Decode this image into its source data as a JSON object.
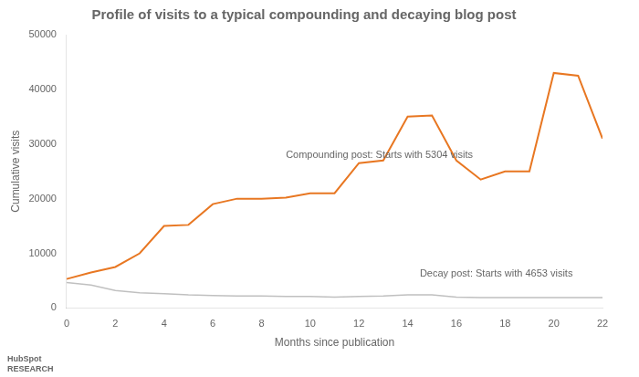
{
  "chart_data": {
    "type": "line",
    "title": "Profile of visits to a typical compounding and decaying blog post",
    "xlabel": "Months since publication",
    "ylabel": "Cumulative visits",
    "x": [
      0,
      1,
      2,
      3,
      4,
      5,
      6,
      7,
      8,
      9,
      10,
      11,
      12,
      13,
      14,
      15,
      16,
      17,
      18,
      19,
      20,
      21,
      22
    ],
    "series": [
      {
        "color": "#E87722",
        "values": [
          5304,
          6500,
          7500,
          10000,
          15000,
          15200,
          19000,
          20000,
          20000,
          20200,
          21000,
          21000,
          26500,
          27000,
          35000,
          35200,
          27000,
          23500,
          25000,
          25000,
          43000,
          42500,
          31000
        ]
      },
      {
        "color": "#C0C0C0",
        "values": [
          4653,
          4200,
          3200,
          2800,
          2600,
          2400,
          2300,
          2200,
          2200,
          2100,
          2100,
          2000,
          2100,
          2200,
          2400,
          2400,
          2000,
          1900,
          1900,
          1900,
          1900,
          1900,
          1900
        ]
      }
    ],
    "xlim": [
      0,
      22
    ],
    "ylim": [
      0,
      50000
    ],
    "xticks": [
      0,
      2,
      4,
      6,
      8,
      10,
      12,
      14,
      16,
      18,
      20,
      22
    ],
    "yticks": [
      0,
      10000,
      20000,
      30000,
      40000,
      50000
    ],
    "grid": false,
    "annotations": [
      {
        "text": "Compounding post: Starts with 5304 visits",
        "x": 9,
        "y": 27500
      },
      {
        "text": "Decay post: Starts with 4653 visits",
        "x": 14.5,
        "y": 5800
      },
      {
        "text": "HubSpot"
      },
      {
        "text": "RESEARCH"
      }
    ]
  }
}
